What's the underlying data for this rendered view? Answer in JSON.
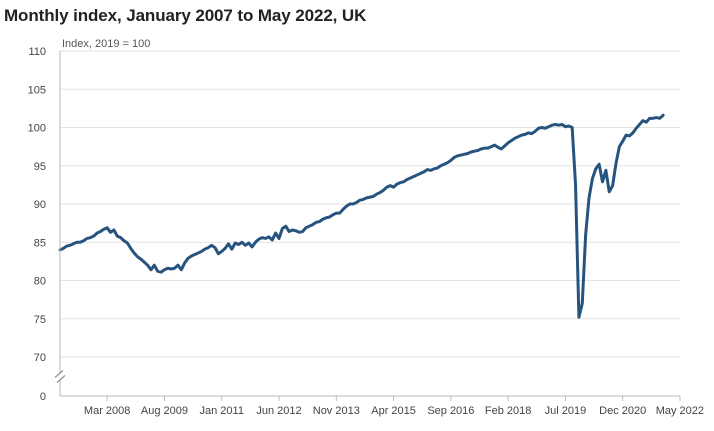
{
  "chart_data": {
    "type": "line",
    "title": "Monthly index, January 2007 to May 2022, UK",
    "ylabel": "Index, 2019 = 100",
    "xlabel": "",
    "ylim": [
      70,
      110
    ],
    "y_axis_break": true,
    "y_ticks": [
      "110",
      "105",
      "100",
      "95",
      "90",
      "85",
      "80",
      "75",
      "70",
      "0"
    ],
    "x_ticks": [
      "Mar 2008",
      "Aug 2009",
      "Jan 2011",
      "Jun 2012",
      "Nov 2013",
      "Apr 2015",
      "Sep 2016",
      "Feb 2018",
      "Jul 2019",
      "Dec 2020",
      "May 2022"
    ],
    "grid": true,
    "legend": "none",
    "line_color": "#27547f",
    "series": [
      {
        "x_start": "2007-01",
        "x_end": "2022-05",
        "values": [
          84.0,
          84.2,
          84.5,
          84.6,
          84.8,
          85.0,
          85.0,
          85.2,
          85.5,
          85.6,
          85.8,
          86.2,
          86.4,
          86.7,
          86.9,
          86.3,
          86.6,
          85.8,
          85.6,
          85.2,
          84.9,
          84.2,
          83.6,
          83.1,
          82.8,
          82.4,
          82.0,
          81.4,
          82.0,
          81.2,
          81.1,
          81.4,
          81.6,
          81.5,
          81.6,
          82.0,
          81.4,
          82.3,
          82.9,
          83.2,
          83.4,
          83.6,
          83.8,
          84.1,
          84.3,
          84.6,
          84.3,
          83.5,
          83.8,
          84.2,
          84.8,
          84.1,
          84.9,
          84.7,
          85.0,
          84.6,
          84.9,
          84.4,
          85.0,
          85.4,
          85.6,
          85.5,
          85.7,
          85.3,
          86.2,
          85.5,
          86.8,
          87.1,
          86.4,
          86.6,
          86.5,
          86.3,
          86.4,
          86.9,
          87.1,
          87.3,
          87.6,
          87.7,
          88.0,
          88.2,
          88.3,
          88.6,
          88.8,
          88.8,
          89.3,
          89.7,
          90.0,
          90.0,
          90.2,
          90.5,
          90.6,
          90.8,
          90.9,
          91.0,
          91.3,
          91.5,
          91.8,
          92.2,
          92.4,
          92.2,
          92.6,
          92.8,
          92.9,
          93.2,
          93.4,
          93.6,
          93.8,
          94.0,
          94.2,
          94.5,
          94.4,
          94.6,
          94.7,
          95.0,
          95.2,
          95.4,
          95.7,
          96.1,
          96.3,
          96.4,
          96.5,
          96.6,
          96.8,
          96.9,
          97.0,
          97.2,
          97.3,
          97.3,
          97.5,
          97.7,
          97.4,
          97.2,
          97.6,
          98.0,
          98.3,
          98.6,
          98.8,
          99.0,
          99.1,
          99.3,
          99.2,
          99.5,
          99.9,
          100.0,
          99.9,
          100.1,
          100.3,
          100.4,
          100.3,
          100.4,
          100.1,
          100.2,
          100.0,
          92.5,
          75.2,
          77.0,
          86.0,
          90.8,
          93.3,
          94.6,
          95.2,
          92.9,
          94.4,
          91.6,
          92.4,
          95.3,
          97.5,
          98.2,
          99.0,
          98.9,
          99.3,
          99.9,
          100.4,
          100.9,
          100.7,
          101.2,
          101.2,
          101.3,
          101.2,
          101.6
        ]
      }
    ]
  }
}
